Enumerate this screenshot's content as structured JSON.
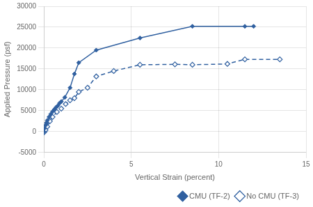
{
  "chart_data": {
    "type": "line",
    "xlabel": "Vertical Strain (percent)",
    "ylabel": "Applied Pressure (psf)",
    "series": [
      {
        "name": "CMU (TF-2)",
        "color": "#3060A0",
        "line_style": "solid",
        "marker": "diamond",
        "x": [
          0.0,
          0.05,
          0.1,
          0.15,
          0.2,
          0.3,
          0.4,
          0.5,
          0.6,
          0.7,
          0.8,
          0.9,
          1.0,
          1.2,
          1.5,
          1.75,
          2.0,
          3.0,
          5.5,
          8.5,
          11.5,
          12.0
        ],
        "values": [
          0,
          800,
          1500,
          2100,
          2700,
          3500,
          4200,
          4800,
          5300,
          5800,
          6200,
          6800,
          7200,
          8200,
          10500,
          13800,
          16500,
          19500,
          22400,
          25200,
          25200,
          25200
        ]
      },
      {
        "name": "No CMU (TF-3)",
        "color": "#3060A0",
        "line_style": "dashed",
        "marker": "diamond_open",
        "x": [
          0.0,
          0.05,
          0.1,
          0.2,
          0.35,
          0.5,
          0.75,
          1.0,
          1.25,
          1.5,
          1.75,
          2.0,
          2.5,
          3.0,
          4.0,
          5.5,
          7.5,
          8.5,
          10.5,
          11.5,
          13.5
        ],
        "values": [
          -200,
          0,
          400,
          1200,
          2500,
          3500,
          4700,
          5500,
          6600,
          7500,
          8000,
          9500,
          10500,
          13200,
          14500,
          16000,
          16100,
          16000,
          16200,
          17300,
          17300
        ]
      }
    ],
    "xlim": [
      0,
      15
    ],
    "xticks": [
      0,
      5,
      10,
      15
    ],
    "ylim": [
      -5000,
      30000
    ],
    "yticks": [
      -5000,
      0,
      5000,
      10000,
      15000,
      20000,
      25000,
      30000
    ],
    "grid": true,
    "legend": "lower right"
  }
}
